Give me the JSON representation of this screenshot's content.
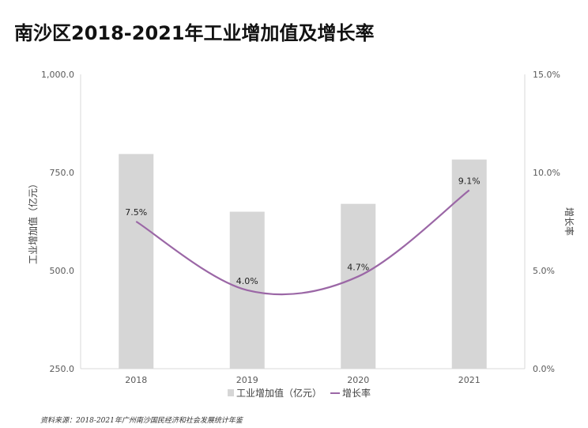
{
  "title": "南沙区2018-2021年工业增加值及增长率",
  "source": "资料来源：2018-2021年广州南沙国民经济和社会发展统计年鉴",
  "chart_data": {
    "type": "bar",
    "categories": [
      "2018",
      "2019",
      "2020",
      "2021"
    ],
    "series": [
      {
        "name": "工业增加值（亿元）",
        "type": "bar",
        "axis": "left",
        "color": "#d6d6d6",
        "values": [
          797,
          650,
          670,
          783
        ]
      },
      {
        "name": "增长率",
        "type": "line",
        "axis": "right",
        "color": "#9b67a6",
        "smooth": true,
        "values": [
          7.5,
          4.0,
          4.7,
          9.1
        ],
        "labels": [
          "7.5%",
          "4.0%",
          "4.7%",
          "9.1%"
        ]
      }
    ],
    "ylabel": "工业增加值（亿元）",
    "y2label": "增长率",
    "ylim": [
      250,
      1000
    ],
    "y2lim": [
      0,
      15
    ],
    "yticks": [
      "1,000.0",
      "750.0",
      "500.0",
      "250.0"
    ],
    "y2ticks": [
      "15.0%",
      "10.0%",
      "5.0%",
      "0.0%"
    ],
    "grid": false,
    "legend_position": "bottom"
  }
}
